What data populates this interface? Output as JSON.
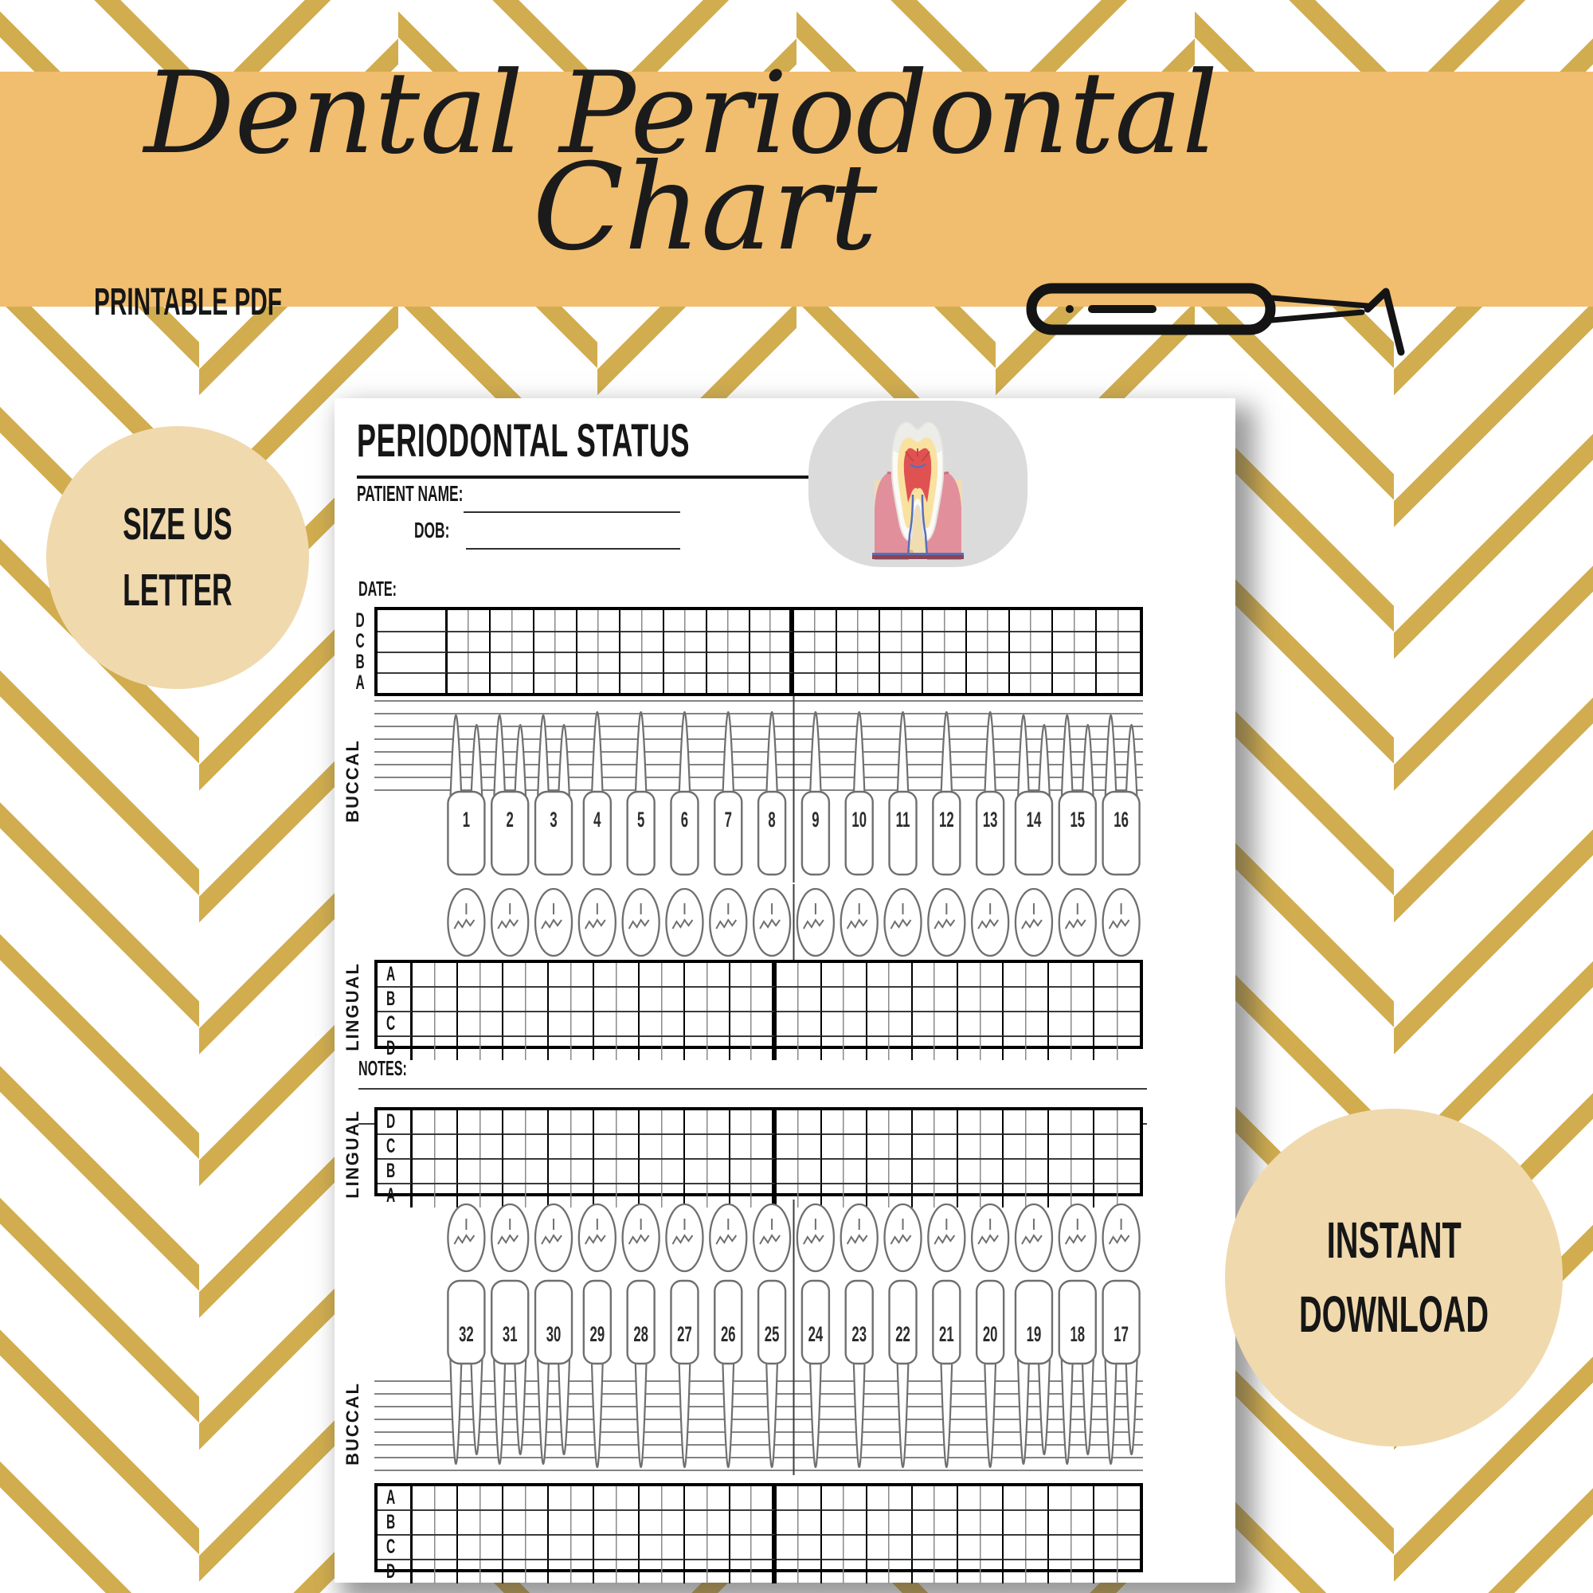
{
  "banner": {
    "title_line1": "Dental Periodontal",
    "title_line2": "Chart",
    "subtitle": "PRINTABLE PDF",
    "bg_color": "#F1BD6E",
    "tool_icon": "dental-scaler-icon"
  },
  "background": {
    "pattern": "herringbone-stripes",
    "stripe_color": "#D1AD4F",
    "base_color": "#FFFFFF"
  },
  "badges": {
    "size": {
      "line1": "SIZE US",
      "line2": "LETTER",
      "bg_color": "#F0D9AD"
    },
    "download": {
      "line1": "INSTANT",
      "line2": "DOWNLOAD",
      "bg_color": "#F0D9AD"
    }
  },
  "document": {
    "title": "PERIODONTAL STATUS",
    "fields": {
      "patient_name_label": "PATIENT NAME:",
      "dob_label": "DOB:",
      "date_label": "DATE:",
      "notes_label": "NOTES:"
    },
    "illustration": "tooth-cross-section",
    "section_labels": {
      "upper_buccal": "BUCCAL",
      "upper_lingual": "LINGUAL",
      "lower_lingual": "LINGUAL",
      "lower_buccal": "BUCCAL"
    },
    "grids": {
      "upper_buccal_rows": [
        "D",
        "C",
        "B",
        "A"
      ],
      "upper_lingual_rows": [
        "A",
        "B",
        "C",
        "D"
      ],
      "lower_lingual_rows": [
        "D",
        "C",
        "B",
        "A"
      ],
      "lower_buccal_rows": [
        "A",
        "B",
        "C",
        "D"
      ],
      "teeth_columns": 16
    },
    "teeth": {
      "upper_numbers": [
        1,
        2,
        3,
        4,
        5,
        6,
        7,
        8,
        9,
        10,
        11,
        12,
        13,
        14,
        15,
        16
      ],
      "lower_numbers": [
        32,
        31,
        30,
        29,
        28,
        27,
        26,
        25,
        24,
        23,
        22,
        21,
        20,
        19,
        18,
        17
      ]
    }
  }
}
